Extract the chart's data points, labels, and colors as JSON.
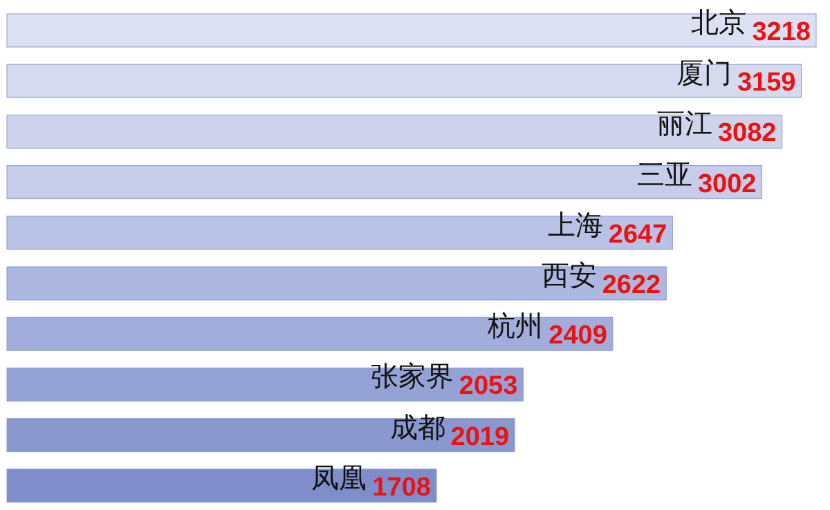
{
  "chart_data": {
    "type": "bar",
    "orientation": "horizontal",
    "categories": [
      "北京",
      "厦门",
      "丽江",
      "三亚",
      "上海",
      "西安",
      "杭州",
      "张家界",
      "成都",
      "凤凰"
    ],
    "values": [
      3218,
      3159,
      3082,
      3002,
      2647,
      2622,
      2409,
      2053,
      2019,
      1708
    ],
    "colors": [
      "#dde0f2",
      "#d6daef",
      "#cfd4ec",
      "#c6cce9",
      "#b9c1e4",
      "#adb7df",
      "#a2addb",
      "#95a2d5",
      "#8b98d0",
      "#7f8dca"
    ],
    "data_labels": true
  }
}
